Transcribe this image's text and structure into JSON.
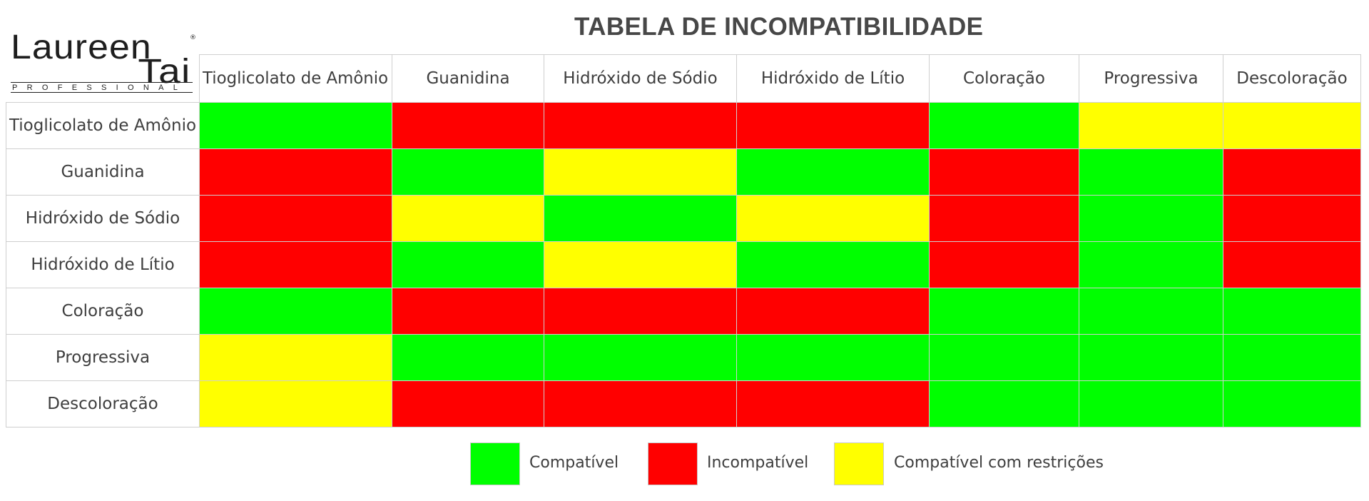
{
  "title": "TABELA DE INCOMPATIBILIDADE",
  "logo": {
    "line1": "Laureen",
    "line2": "Tai",
    "tagline": "PROFESSIONAL",
    "registered": "®"
  },
  "colors": {
    "compatible": "#00ff00",
    "incompatible": "#ff0000",
    "restricted": "#ffff00"
  },
  "columns": [
    "Tioglicolato de Amônio",
    "Guanidina",
    "Hidróxido de Sódio",
    "Hidróxido de Lítio",
    "Coloração",
    "Progressiva",
    "Descoloração"
  ],
  "rows": [
    {
      "label": "Tioglicolato de Amônio",
      "cells": [
        "C",
        "I",
        "I",
        "I",
        "C",
        "R",
        "R"
      ]
    },
    {
      "label": "Guanidina",
      "cells": [
        "I",
        "C",
        "R",
        "C",
        "I",
        "C",
        "I"
      ]
    },
    {
      "label": "Hidróxido de Sódio",
      "cells": [
        "I",
        "R",
        "C",
        "R",
        "I",
        "C",
        "I"
      ]
    },
    {
      "label": "Hidróxido de Lítio",
      "cells": [
        "I",
        "C",
        "R",
        "C",
        "I",
        "C",
        "I"
      ]
    },
    {
      "label": "Coloração",
      "cells": [
        "C",
        "I",
        "I",
        "I",
        "C",
        "C",
        "C"
      ]
    },
    {
      "label": "Progressiva",
      "cells": [
        "R",
        "C",
        "C",
        "C",
        "C",
        "C",
        "C"
      ]
    },
    {
      "label": "Descoloração",
      "cells": [
        "R",
        "I",
        "I",
        "I",
        "C",
        "C",
        "C"
      ]
    }
  ],
  "legend": [
    {
      "key": "C",
      "label": "Compatível"
    },
    {
      "key": "I",
      "label": "Incompatível"
    },
    {
      "key": "R",
      "label": "Compatível com restrições"
    }
  ]
}
